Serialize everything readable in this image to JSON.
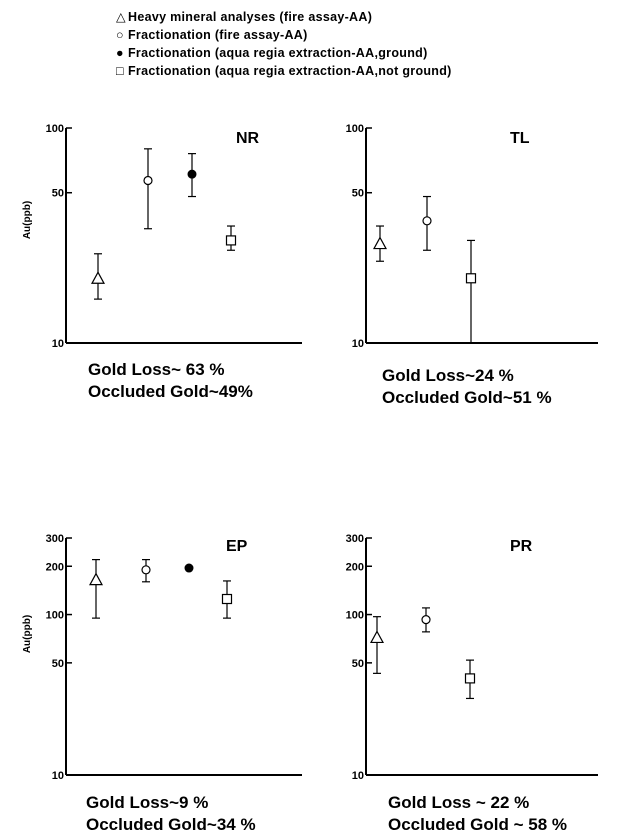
{
  "legend": [
    {
      "symbol": "△",
      "marker": "triangle",
      "label": "Heavy mineral analyses (fire assay-AA)"
    },
    {
      "symbol": "○",
      "marker": "circle-open",
      "label": "Fractionation (fire assay-AA)"
    },
    {
      "symbol": "●",
      "marker": "circle-filled",
      "label": "Fractionation (aqua regia extraction-AA,ground)"
    },
    {
      "symbol": "□",
      "marker": "square-open",
      "label": "Fractionation (aqua regia extraction-AA,not ground)"
    }
  ],
  "chart_data": [
    {
      "type": "scatter",
      "title": "NR",
      "ylabel": "Au(ppb)",
      "yscale": "log",
      "ylim": [
        10,
        100
      ],
      "yticks": [
        10,
        50,
        100
      ],
      "xticks": [],
      "points": [
        {
          "series": "Heavy mineral analyses (fire assay-AA)",
          "marker": "triangle",
          "x": 1,
          "y": 20,
          "err": [
            16,
            26
          ]
        },
        {
          "series": "Fractionation (fire assay-AA)",
          "marker": "circle-open",
          "x": 2,
          "y": 57,
          "err": [
            34,
            80
          ]
        },
        {
          "series": "Fractionation (aqua regia extraction-AA,ground)",
          "marker": "circle-filled",
          "x": 3,
          "y": 61,
          "err": [
            48,
            76
          ]
        },
        {
          "series": "Fractionation (aqua regia extraction-AA,not ground)",
          "marker": "square-open",
          "x": 4,
          "y": 30,
          "err": [
            27,
            35
          ]
        }
      ],
      "captions": [
        "Gold Loss~ 63 %",
        "Occluded Gold~49%"
      ]
    },
    {
      "type": "scatter",
      "title": "TL",
      "ylabel": "",
      "yscale": "log",
      "ylim": [
        10,
        100
      ],
      "yticks": [
        10,
        50,
        100
      ],
      "xticks": [],
      "points": [
        {
          "series": "Heavy mineral analyses (fire assay-AA)",
          "marker": "triangle",
          "x": 1,
          "y": 29,
          "err": [
            24,
            35
          ]
        },
        {
          "series": "Fractionation (fire assay-AA)",
          "marker": "circle-open",
          "x": 2,
          "y": 37,
          "err": [
            27,
            48
          ]
        },
        {
          "series": "Fractionation (aqua regia extraction-AA,not ground)",
          "marker": "square-open",
          "x": 3,
          "y": 20,
          "err": [
            10,
            30
          ]
        }
      ],
      "captions": [
        "Gold Loss~24 %",
        "Occluded Gold~51 %"
      ]
    },
    {
      "type": "scatter",
      "title": "EP",
      "ylabel": "Au(ppb)",
      "yscale": "log",
      "ylim": [
        10,
        300
      ],
      "yticks": [
        10,
        50,
        100,
        200,
        300
      ],
      "xticks": [],
      "points": [
        {
          "series": "Heavy mineral analyses (fire assay-AA)",
          "marker": "triangle",
          "x": 1,
          "y": 165,
          "err": [
            95,
            220
          ]
        },
        {
          "series": "Fractionation (fire assay-AA)",
          "marker": "circle-open",
          "x": 2,
          "y": 190,
          "err": [
            160,
            220
          ]
        },
        {
          "series": "Fractionation (aqua regia extraction-AA,ground)",
          "marker": "circle-filled",
          "x": 3,
          "y": 195,
          "err": null
        },
        {
          "series": "Fractionation (aqua regia extraction-AA,not ground)",
          "marker": "square-open",
          "x": 4,
          "y": 125,
          "err": [
            95,
            162
          ]
        }
      ],
      "captions": [
        "Gold Loss~9 %",
        "Occluded Gold~34 %"
      ]
    },
    {
      "type": "scatter",
      "title": "PR",
      "ylabel": "",
      "yscale": "log",
      "ylim": [
        10,
        300
      ],
      "yticks": [
        10,
        50,
        100,
        200,
        300
      ],
      "xticks": [],
      "points": [
        {
          "series": "Heavy mineral analyses (fire assay-AA)",
          "marker": "triangle",
          "x": 1,
          "y": 72,
          "err": [
            43,
            97
          ]
        },
        {
          "series": "Fractionation (fire assay-AA)",
          "marker": "circle-open",
          "x": 2,
          "y": 93,
          "err": [
            78,
            110
          ]
        },
        {
          "series": "Fractionation (aqua regia extraction-AA,not ground)",
          "marker": "square-open",
          "x": 3,
          "y": 40,
          "err": [
            30,
            52
          ]
        }
      ],
      "captions": [
        "Gold Loss ~ 22 %",
        "Occluded Gold ~ 58 %"
      ]
    }
  ]
}
